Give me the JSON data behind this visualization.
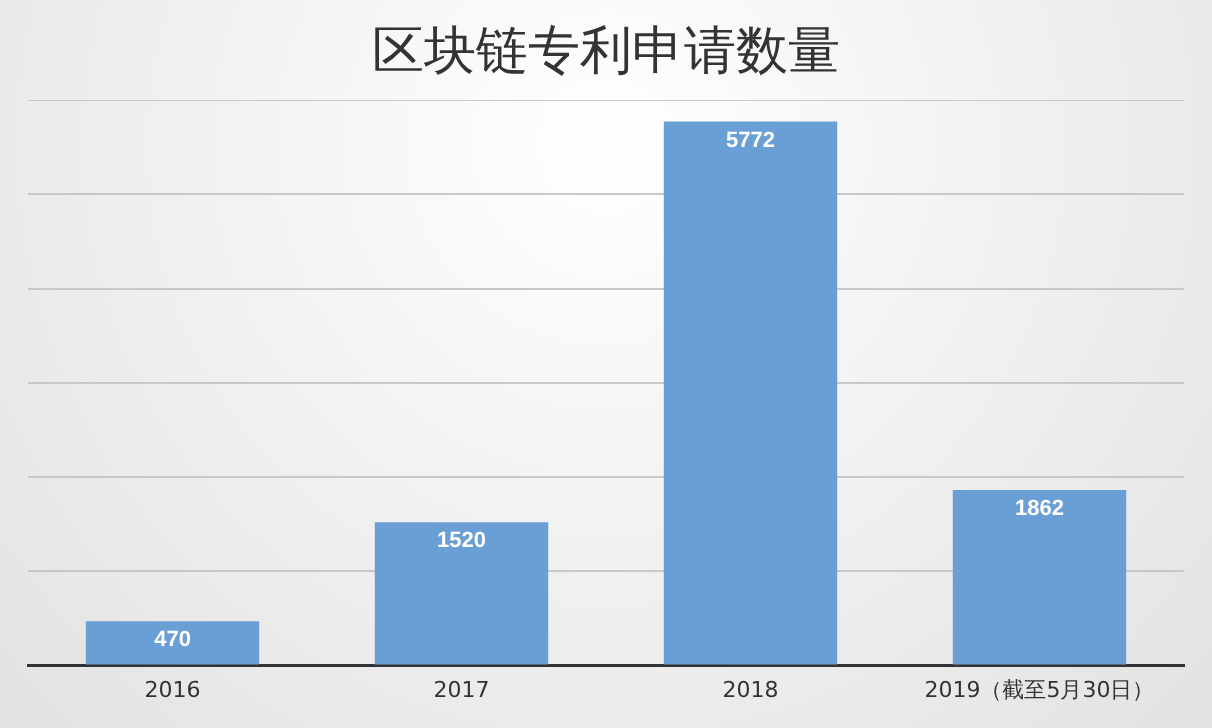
{
  "chart_data": {
    "type": "bar",
    "title": "区块链专利申请数量",
    "categories": [
      "2016",
      "2017",
      "2018",
      "2019（截至5月30日）"
    ],
    "values": [
      470,
      1520,
      5772,
      1862
    ],
    "color": "#6a9fd6",
    "tick_labels": "x",
    "grid": "y",
    "data_labels": true,
    "legend": false
  }
}
